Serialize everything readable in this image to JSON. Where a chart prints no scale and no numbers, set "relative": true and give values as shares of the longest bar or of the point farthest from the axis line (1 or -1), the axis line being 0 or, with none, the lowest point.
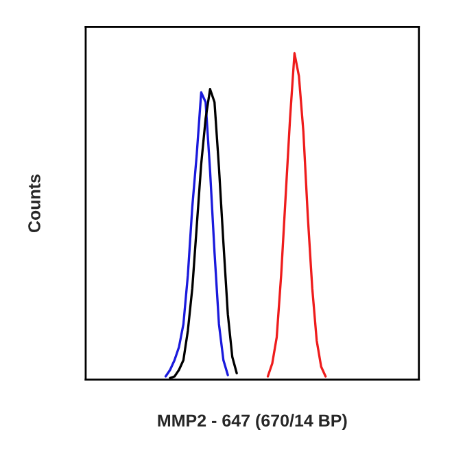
{
  "chart_data": {
    "type": "line",
    "relative": true,
    "xlabel": "MMP2 - 647 (670/14 BP)",
    "ylabel": "Counts",
    "tick_labels": false,
    "legend": false,
    "marker": "none",
    "line_style": "solid",
    "categories": [
      null,
      null,
      null,
      null,
      null,
      null,
      null,
      null,
      null,
      null,
      null,
      null,
      null,
      null,
      null,
      null,
      null,
      null,
      null,
      null,
      null,
      null,
      null,
      null,
      null,
      null,
      null,
      null,
      null,
      null,
      null,
      null,
      null,
      null,
      null,
      null,
      null,
      null,
      null,
      null,
      null,
      null,
      null,
      null,
      null,
      null,
      null,
      null,
      null,
      null,
      null,
      null,
      null,
      null,
      null,
      null,
      null,
      null,
      null,
      null,
      null,
      null,
      null,
      null,
      null,
      null,
      null,
      null,
      null,
      null,
      null,
      null,
      null,
      null,
      null,
      null
    ],
    "series": [
      {
        "color": "#1a1adc",
        "values": [
          null,
          null,
          null,
          null,
          null,
          null,
          null,
          null,
          null,
          null,
          null,
          null,
          null,
          null,
          null,
          null,
          null,
          null,
          0.01,
          0.03,
          0.06,
          0.1,
          0.17,
          0.32,
          0.53,
          0.69,
          0.88,
          0.85,
          0.64,
          0.39,
          0.17,
          0.06,
          0.014,
          null,
          null,
          null,
          null,
          null,
          null,
          null,
          null,
          null,
          null,
          null,
          null,
          null,
          null,
          null,
          null,
          null,
          null,
          null,
          null,
          null,
          null,
          null,
          null,
          null,
          null,
          null,
          null,
          null,
          null,
          null,
          null,
          null,
          null,
          null,
          null,
          null,
          null,
          null,
          null,
          null,
          null,
          null
        ]
      },
      {
        "color": "#000000",
        "values": [
          null,
          null,
          null,
          null,
          null,
          null,
          null,
          null,
          null,
          null,
          null,
          null,
          null,
          null,
          null,
          null,
          null,
          null,
          null,
          0.005,
          0.01,
          0.03,
          0.06,
          0.15,
          0.28,
          0.47,
          0.66,
          0.8,
          0.89,
          0.85,
          0.65,
          0.42,
          0.2,
          0.07,
          0.02,
          null,
          null,
          null,
          null,
          null,
          null,
          null,
          null,
          null,
          null,
          null,
          null,
          null,
          null,
          null,
          null,
          null,
          null,
          null,
          null,
          null,
          null,
          null,
          null,
          null,
          null,
          null,
          null,
          null,
          null,
          null,
          null,
          null,
          null,
          null,
          null,
          null,
          null,
          null,
          null,
          null
        ]
      },
      {
        "color": "#ee1c1c",
        "values": [
          null,
          null,
          null,
          null,
          null,
          null,
          null,
          null,
          null,
          null,
          null,
          null,
          null,
          null,
          null,
          null,
          null,
          null,
          null,
          null,
          null,
          null,
          null,
          null,
          null,
          null,
          null,
          null,
          null,
          null,
          null,
          null,
          null,
          null,
          null,
          null,
          null,
          null,
          null,
          null,
          null,
          0.01,
          0.05,
          0.13,
          0.32,
          0.56,
          0.8,
          1.0,
          0.93,
          0.76,
          0.5,
          0.28,
          0.12,
          0.04,
          0.01,
          null,
          null,
          null,
          null,
          null,
          null,
          null,
          null,
          null,
          null,
          null,
          null,
          null,
          null,
          null,
          null,
          null,
          null,
          null,
          null,
          null
        ]
      }
    ]
  }
}
